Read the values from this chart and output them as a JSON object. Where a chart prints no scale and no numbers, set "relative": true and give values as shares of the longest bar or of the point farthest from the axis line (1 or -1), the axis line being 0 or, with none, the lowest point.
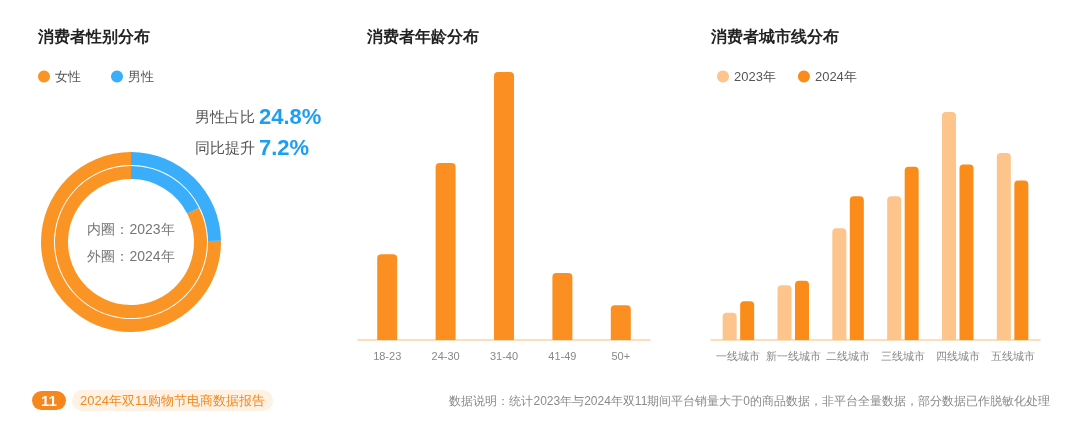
{
  "chart_data": [
    {
      "type": "donut",
      "title": "消费者性别分布",
      "categories": [
        "女性",
        "男性"
      ],
      "colors": [
        "#fa9424",
        "#3baefb"
      ],
      "series": [
        {
          "values": [
            82.4,
            17.6
          ]
        },
        {
          "values": [
            75.2,
            24.8
          ]
        }
      ],
      "legend": "top left",
      "annotations": [
        "男性占比",
        "24.8%",
        "同比提升",
        "7.2%",
        "内圈：2023年",
        "外圈：2024年",
        "11",
        "2024年双11购物节电商数据报告"
      ]
    },
    {
      "type": "bar",
      "title": "消费者年龄分布",
      "categories": [
        "18-23",
        "24-30",
        "31-40",
        "41-49",
        "50+"
      ],
      "values": [
        0.32,
        0.66,
        1,
        0.25,
        0.13
      ],
      "color": "#fb8f22",
      "relative": true
    },
    {
      "type": "bar",
      "title": "消费者城市线分布",
      "categories": [
        "一线城市",
        "新一线城市",
        "二线城市",
        "三线城市",
        "四线城市",
        "五线城市"
      ],
      "series": [
        {
          "name": "2023年",
          "color": "#fdc48c",
          "values": [
            0.12,
            0.24,
            0.49,
            0.63,
            1,
            0.82
          ]
        },
        {
          "name": "2024年",
          "color": "#fb8c1a",
          "values": [
            0.17,
            0.26,
            0.63,
            0.76,
            0.77,
            0.7
          ]
        }
      ],
      "relative": true,
      "legend": "top left",
      "annotations": [
        "数据说明：统计2023年与2024年双11期间平台销量大于0的商品数据，非平台全量数据，部分数据已作脱敏化处理"
      ]
    }
  ]
}
